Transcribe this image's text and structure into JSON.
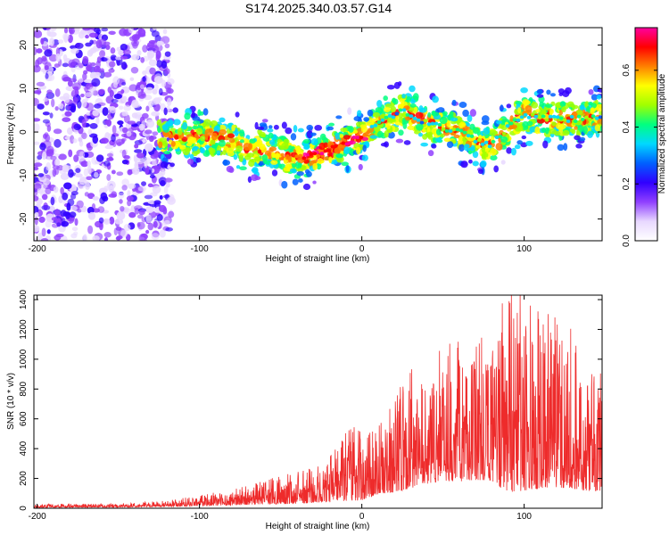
{
  "title": "S174.2025.340.03.57.G14",
  "chart_data": [
    {
      "type": "heatmap",
      "xlabel": "Height of straight line (km)",
      "ylabel": "Frequency (Hz)",
      "xlim": [
        -202,
        148
      ],
      "ylim": [
        -25,
        24
      ],
      "xticks": [
        -200,
        -100,
        0,
        100
      ],
      "yticks": [
        -20,
        -10,
        0,
        10,
        20
      ],
      "colorbar": {
        "label": "Normalized spectral amplitude",
        "range": [
          0,
          0.75
        ],
        "ticks": [
          "0.0",
          "0.2",
          "0.4",
          "0.6"
        ],
        "colors": [
          "#ffffff",
          "#e8d8ff",
          "#9040ff",
          "#3000ff",
          "#0060ff",
          "#00d8ff",
          "#00ff80",
          "#a0ff00",
          "#ffff00",
          "#ff8000",
          "#ff0000",
          "#ff00a0"
        ]
      },
      "ridge": {
        "x": [
          -120,
          -100,
          -80,
          -70,
          -60,
          -50,
          -40,
          -30,
          -20,
          -10,
          0,
          10,
          20,
          25,
          30,
          40,
          50,
          60,
          70,
          80,
          90,
          100,
          110,
          120,
          130,
          140,
          148
        ],
        "y": [
          -1,
          -1,
          -2,
          -4,
          -4,
          -5,
          -6,
          -5.5,
          -4,
          -2.5,
          -1,
          2,
          4,
          5,
          4,
          2,
          1,
          0,
          -2,
          -3,
          1,
          4,
          3,
          3,
          3,
          3,
          4
        ]
      }
    },
    {
      "type": "line",
      "xlabel": "Height of straight line (km)",
      "ylabel": "SNR (10 * v/v)",
      "xlim": [
        -202,
        148
      ],
      "ylim": [
        0,
        1430
      ],
      "xticks": [
        -200,
        -100,
        0,
        100
      ],
      "yticks": [
        0,
        200,
        400,
        600,
        800,
        1000,
        1200,
        1400
      ],
      "color": "#ee2b2b",
      "envelope": {
        "x": [
          -202,
          -150,
          -120,
          -100,
          -80,
          -60,
          -40,
          -20,
          -10,
          0,
          10,
          20,
          30,
          40,
          50,
          60,
          70,
          80,
          90,
          100,
          110,
          120,
          130,
          140,
          148
        ],
        "base": [
          10,
          12,
          20,
          30,
          45,
          60,
          80,
          110,
          150,
          170,
          200,
          240,
          330,
          360,
          380,
          390,
          400,
          410,
          420,
          420,
          410,
          390,
          370,
          340,
          300
        ],
        "amp": [
          15,
          15,
          25,
          45,
          70,
          100,
          140,
          200,
          290,
          330,
          300,
          380,
          560,
          560,
          560,
          600,
          600,
          640,
          900,
          860,
          800,
          720,
          680,
          640,
          520
        ]
      }
    }
  ]
}
